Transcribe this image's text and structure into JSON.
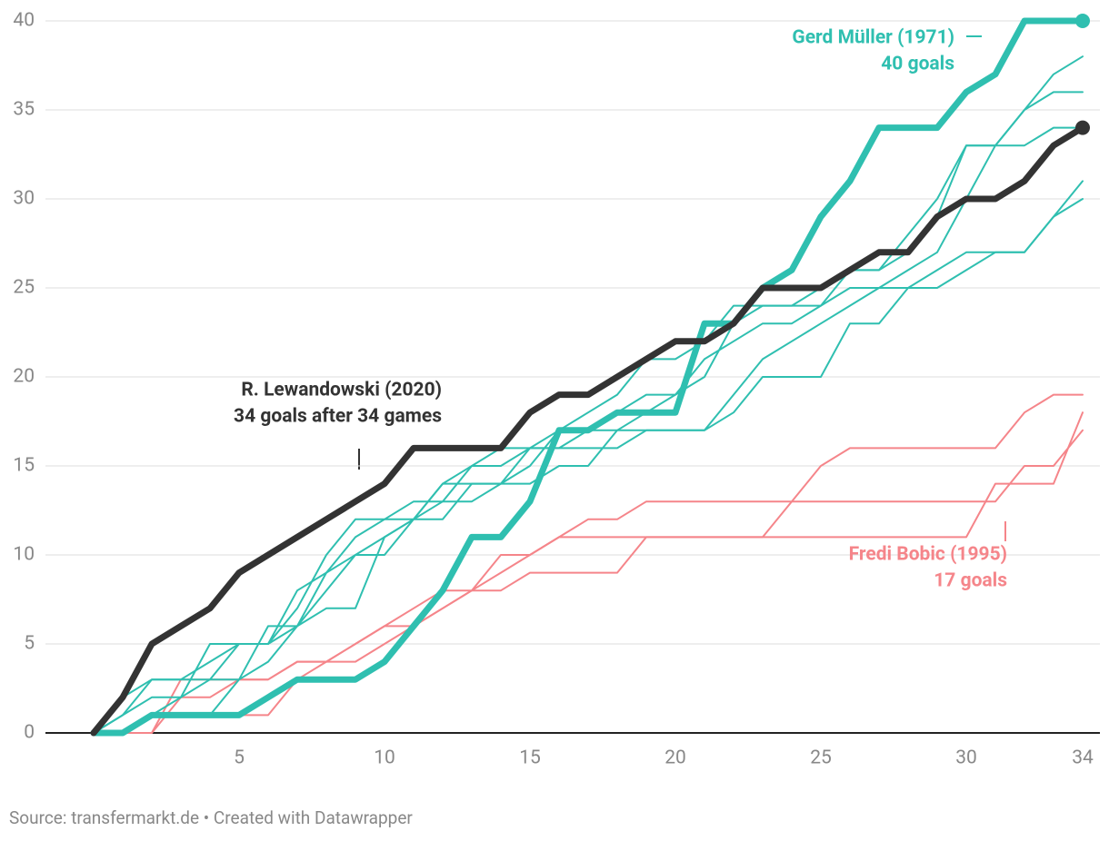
{
  "chart_data": {
    "type": "line",
    "x": [
      0,
      1,
      2,
      3,
      4,
      5,
      6,
      7,
      8,
      9,
      10,
      11,
      12,
      13,
      14,
      15,
      16,
      17,
      18,
      19,
      20,
      21,
      22,
      23,
      24,
      25,
      26,
      27,
      28,
      29,
      30,
      31,
      32,
      33,
      34
    ],
    "xlim": [
      0,
      34
    ],
    "xticks": [
      5,
      10,
      15,
      20,
      25,
      30,
      34
    ],
    "ylim": [
      0,
      40
    ],
    "yticks": [
      0,
      5,
      10,
      15,
      20,
      25,
      30,
      35,
      40
    ],
    "grid": true,
    "series": [
      {
        "color": "#f5858a",
        "linewidth": 2,
        "values": [
          0,
          0,
          0,
          2,
          2,
          3,
          3,
          4,
          4,
          5,
          6,
          6,
          7,
          8,
          10,
          10,
          11,
          11,
          11,
          11,
          11,
          11,
          11,
          11,
          13,
          15,
          16,
          16,
          16,
          16,
          16,
          16,
          18,
          19,
          19
        ]
      },
      {
        "color": "#f5858a",
        "linewidth": 2,
        "values": [
          0,
          0,
          1,
          1,
          1,
          1,
          1,
          3,
          4,
          4,
          5,
          6,
          7,
          8,
          8,
          9,
          9,
          9,
          9,
          11,
          11,
          11,
          11,
          11,
          11,
          11,
          11,
          11,
          11,
          11,
          11,
          14,
          14,
          14,
          18
        ]
      },
      {
        "color": "#f5858a",
        "linewidth": 2,
        "values": [
          0,
          0,
          0,
          3,
          3,
          3,
          3,
          4,
          4,
          5,
          6,
          7,
          8,
          8,
          9,
          10,
          11,
          12,
          12,
          13,
          13,
          13,
          13,
          13,
          13,
          13,
          13,
          13,
          13,
          13,
          13,
          13,
          15,
          15,
          17
        ]
      },
      {
        "color": "#2fbfb0",
        "linewidth": 2,
        "values": [
          0,
          1,
          3,
          3,
          3,
          3,
          6,
          6,
          9,
          11,
          12,
          12,
          12,
          14,
          14,
          16,
          17,
          18,
          19,
          21,
          21,
          22,
          24,
          24,
          24,
          24,
          26,
          26,
          28,
          30,
          33,
          33,
          35,
          37,
          38
        ]
      },
      {
        "color": "#2fbfb0",
        "linewidth": 2,
        "values": [
          0,
          2,
          3,
          3,
          4,
          5,
          5,
          6,
          8,
          10,
          11,
          12,
          14,
          14,
          14,
          15,
          17,
          17,
          18,
          19,
          19,
          21,
          22,
          23,
          23,
          24,
          25,
          25,
          26,
          27,
          30,
          33,
          35,
          36,
          36
        ]
      },
      {
        "color": "#2fbfb0",
        "linewidth": 2,
        "values": [
          0,
          1,
          2,
          2,
          3,
          5,
          5,
          7,
          10,
          12,
          12,
          13,
          13,
          15,
          15,
          16,
          16,
          17,
          17,
          18,
          19,
          20,
          23,
          24,
          24,
          25,
          26,
          26,
          27,
          29,
          33,
          33,
          33,
          34,
          34
        ]
      },
      {
        "color": "#2fbfb0",
        "linewidth": 2,
        "values": [
          0,
          0,
          1,
          2,
          5,
          5,
          5,
          8,
          9,
          10,
          10,
          12,
          14,
          15,
          16,
          16,
          16,
          16,
          16,
          17,
          17,
          17,
          19,
          21,
          22,
          23,
          24,
          25,
          25,
          26,
          27,
          27,
          27,
          29,
          31
        ]
      },
      {
        "color": "#2fbfb0",
        "linewidth": 2,
        "values": [
          0,
          0,
          1,
          1,
          1,
          3,
          4,
          6,
          7,
          7,
          11,
          12,
          13,
          13,
          14,
          14,
          15,
          15,
          17,
          17,
          17,
          17,
          18,
          20,
          20,
          20,
          23,
          23,
          25,
          25,
          26,
          27,
          27,
          29,
          30
        ]
      },
      {
        "color": "#2fbfb0",
        "linewidth": 7,
        "end_marker": true,
        "values": [
          0,
          0,
          1,
          1,
          1,
          1,
          2,
          3,
          3,
          3,
          4,
          6,
          8,
          11,
          11,
          13,
          17,
          17,
          18,
          18,
          18,
          23,
          23,
          25,
          26,
          29,
          31,
          34,
          34,
          34,
          36,
          37,
          40,
          40,
          40
        ]
      },
      {
        "color": "#333333",
        "linewidth": 7,
        "end_marker": true,
        "values": [
          0,
          2,
          5,
          6,
          7,
          9,
          10,
          11,
          12,
          13,
          14,
          16,
          16,
          16,
          16,
          18,
          19,
          19,
          20,
          21,
          22,
          22,
          23,
          25,
          25,
          25,
          26,
          27,
          27,
          29,
          30,
          30,
          31,
          33,
          34
        ]
      }
    ],
    "annotations": [
      {
        "lines": [
          "Gerd Müller (1971)",
          "40 goals"
        ]
      },
      {
        "lines": [
          "R. Lewandowski (2020)",
          "34 goals after 34 games"
        ]
      },
      {
        "lines": [
          "Fredi Bobic (1995)",
          "17 goals"
        ]
      }
    ],
    "source": "Source: transfermarkt.de • Created with Datawrapper"
  }
}
